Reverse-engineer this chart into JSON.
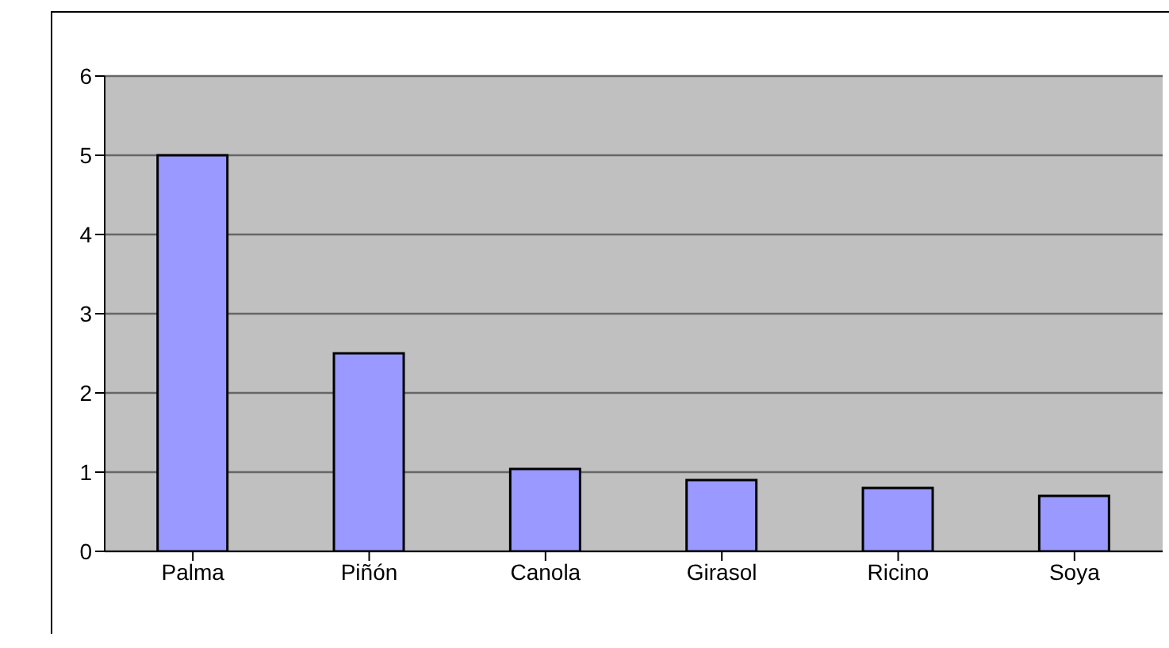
{
  "chart_data": {
    "type": "bar",
    "categories": [
      "Palma",
      "Piñón",
      "Canola",
      "Girasol",
      "Ricino",
      "Soya"
    ],
    "values": [
      5,
      2.5,
      1.04,
      0.9,
      0.8,
      0.7
    ],
    "color": "#9999ff",
    "ylim": [
      0,
      6
    ],
    "yticks": [
      0,
      1,
      2,
      3,
      4,
      5,
      6
    ],
    "grid": "y"
  }
}
